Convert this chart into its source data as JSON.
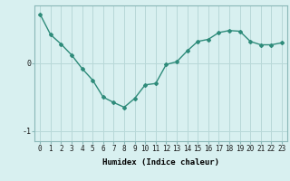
{
  "x": [
    0,
    1,
    2,
    3,
    4,
    5,
    6,
    7,
    8,
    9,
    10,
    11,
    12,
    13,
    14,
    15,
    16,
    17,
    18,
    19,
    20,
    21,
    22,
    23
  ],
  "y": [
    0.72,
    0.42,
    0.28,
    0.12,
    -0.08,
    -0.25,
    -0.5,
    -0.58,
    -0.65,
    -0.52,
    -0.32,
    -0.3,
    -0.02,
    0.02,
    0.18,
    0.32,
    0.35,
    0.45,
    0.48,
    0.47,
    0.32,
    0.27,
    0.27,
    0.3
  ],
  "line_color": "#2e8b7a",
  "marker": "D",
  "marker_size": 2,
  "bg_color": "#d8f0f0",
  "grid_color": "#b8d8d8",
  "xlabel": "Humidex (Indice chaleur)",
  "yticks": [
    0,
    -1
  ],
  "ytick_labels": [
    "0",
    "-1"
  ],
  "xlim": [
    -0.5,
    23.5
  ],
  "ylim": [
    -1.15,
    0.85
  ],
  "xlabel_fontsize": 6.5,
  "tick_fontsize": 5.5
}
